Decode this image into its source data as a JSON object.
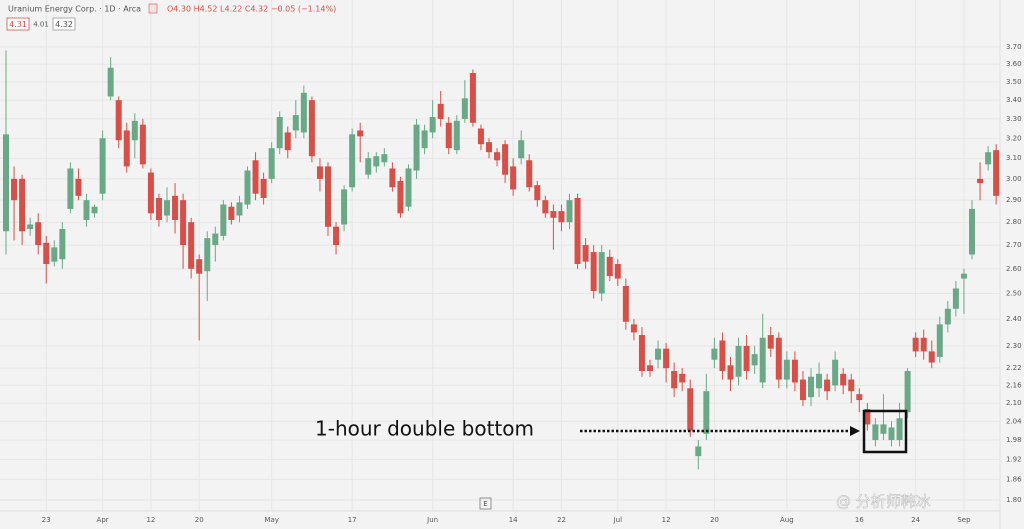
{
  "header": {
    "symbol": "Uranium Energy Corp. · 1D · Arca",
    "ohlc": "O4.30 H4.52 L4.22 C4.32 −0.05 (−1.14%)",
    "boxes": [
      "4.31",
      "4.01",
      "4.32"
    ]
  },
  "watermark": "@ 分析师韩冰",
  "scale_button": "E",
  "chart_data": {
    "type": "candlestick",
    "log_scale": true,
    "grid": true,
    "up_color": "#6aa888",
    "down_color": "#d45049",
    "annotation": "1-hour double bottom",
    "categories": [
      null,
      null,
      null,
      null,
      null,
      "23",
      null,
      null,
      null,
      null,
      null,
      null,
      "Apr",
      null,
      null,
      null,
      null,
      null,
      "12",
      null,
      null,
      null,
      null,
      null,
      "20",
      null,
      null,
      null,
      null,
      null,
      null,
      null,
      null,
      "May",
      null,
      null,
      null,
      null,
      null,
      null,
      null,
      null,
      null,
      "17",
      null,
      null,
      null,
      null,
      null,
      null,
      null,
      null,
      null,
      "Jun",
      null,
      null,
      null,
      null,
      null,
      null,
      null,
      null,
      null,
      "14",
      null,
      null,
      null,
      null,
      null,
      "22",
      null,
      null,
      null,
      null,
      null,
      null,
      "Jul",
      null,
      null,
      null,
      null,
      null,
      "12",
      null,
      null,
      null,
      null,
      null,
      "20",
      null,
      null,
      null,
      null,
      null,
      null,
      null,
      null,
      "Aug",
      null,
      null,
      null,
      null,
      null,
      null,
      null,
      null,
      "16",
      null,
      null,
      null,
      null,
      null,
      null,
      "24",
      null,
      null,
      null,
      null,
      null,
      "Sep",
      null,
      null,
      null,
      null
    ],
    "open": [
      2.76,
      3.0,
      3.0,
      2.77,
      2.8,
      2.71,
      2.63,
      2.64,
      2.86,
      3.0,
      2.81,
      2.84,
      2.93,
      3.42,
      3.4,
      3.24,
      3.19,
      3.27,
      3.03,
      2.91,
      2.83,
      2.92,
      2.9,
      2.8,
      2.64,
      2.59,
      2.7,
      2.74,
      2.87,
      2.83,
      2.88,
      3.09,
      3.0,
      3.0,
      3.15,
      3.23,
      3.24,
      3.23,
      3.4,
      3.06,
      3.06,
      2.78,
      2.79,
      2.96,
      3.24,
      3.02,
      3.06,
      3.08,
      3.05,
      2.99,
      2.87,
      3.04,
      3.15,
      3.23,
      3.38,
      3.28,
      3.14,
      3.3,
      3.55,
      3.25,
      3.18,
      3.13,
      3.17,
      3.06,
      3.1,
      3.09,
      2.97,
      2.9,
      2.85,
      2.85,
      2.8,
      2.91,
      2.7,
      2.67,
      2.5,
      2.65,
      2.62,
      2.53,
      2.38,
      2.34,
      2.23,
      2.25,
      2.29,
      2.21,
      2.2,
      2.15,
      1.93,
      2.0,
      2.25,
      2.32,
      2.23,
      2.19,
      2.3,
      2.23,
      2.17,
      2.34,
      2.33,
      2.18,
      2.25,
      2.18,
      2.12,
      2.15,
      2.18,
      2.16,
      2.2,
      2.18,
      2.13,
      2.08,
      1.98,
      2.0,
      1.98,
      1.98,
      2.07,
      2.33,
      2.33,
      2.28,
      2.26,
      2.38,
      2.44,
      2.56,
      2.66,
      3.0,
      3.07,
      3.14
    ],
    "high": [
      3.68,
      3.06,
      3.02,
      2.82,
      2.84,
      2.74,
      2.72,
      2.8,
      3.08,
      3.05,
      2.93,
      2.88,
      3.24,
      3.64,
      3.42,
      3.28,
      3.33,
      3.3,
      3.05,
      2.93,
      2.96,
      2.98,
      2.93,
      2.82,
      2.66,
      2.76,
      2.78,
      2.9,
      2.89,
      2.92,
      3.06,
      3.13,
      3.03,
      3.18,
      3.34,
      3.26,
      3.4,
      3.48,
      3.42,
      3.1,
      3.08,
      2.8,
      2.97,
      3.25,
      3.28,
      3.13,
      3.13,
      3.15,
      3.08,
      3.01,
      3.07,
      3.3,
      3.27,
      3.4,
      3.45,
      3.31,
      3.32,
      3.51,
      3.57,
      3.27,
      3.2,
      3.15,
      3.19,
      3.1,
      3.24,
      3.12,
      2.99,
      2.92,
      2.88,
      2.88,
      2.93,
      2.93,
      2.73,
      2.7,
      2.7,
      2.68,
      2.64,
      2.56,
      2.4,
      2.37,
      2.25,
      2.32,
      2.31,
      2.24,
      2.22,
      2.18,
      1.98,
      2.2,
      2.33,
      2.35,
      2.26,
      2.33,
      2.34,
      2.3,
      2.42,
      2.37,
      2.35,
      2.28,
      2.28,
      2.21,
      2.22,
      2.24,
      2.2,
      2.28,
      2.22,
      2.2,
      2.15,
      2.1,
      2.05,
      2.13,
      2.04,
      2.1,
      2.22,
      2.35,
      2.36,
      2.32,
      2.41,
      2.47,
      2.55,
      2.6,
      2.9,
      3.08,
      3.16,
      3.17
    ],
    "low": [
      2.66,
      2.72,
      2.7,
      2.74,
      2.66,
      2.54,
      2.61,
      2.6,
      2.84,
      2.9,
      2.78,
      2.82,
      2.9,
      3.4,
      3.15,
      3.03,
      3.1,
      3.05,
      2.81,
      2.78,
      2.8,
      2.75,
      2.6,
      2.56,
      2.32,
      2.47,
      2.63,
      2.72,
      2.79,
      2.8,
      2.86,
      2.9,
      2.88,
      2.98,
      3.12,
      3.1,
      3.2,
      3.2,
      3.08,
      2.94,
      2.74,
      2.66,
      2.76,
      2.94,
      3.08,
      3.0,
      3.03,
      3.06,
      2.94,
      2.82,
      2.85,
      3.0,
      3.12,
      3.2,
      3.26,
      3.12,
      3.12,
      3.28,
      3.26,
      3.14,
      3.1,
      3.06,
      2.98,
      2.92,
      3.07,
      2.94,
      2.87,
      2.82,
      2.68,
      2.76,
      2.77,
      2.6,
      2.6,
      2.48,
      2.47,
      2.55,
      2.53,
      2.36,
      2.32,
      2.19,
      2.19,
      2.22,
      2.17,
      2.12,
      2.14,
      1.99,
      1.89,
      1.98,
      2.22,
      2.18,
      2.14,
      2.16,
      2.18,
      2.2,
      2.15,
      2.26,
      2.15,
      2.15,
      2.14,
      2.09,
      2.09,
      2.12,
      2.11,
      2.14,
      2.13,
      2.1,
      2.07,
      2.01,
      1.96,
      1.98,
      1.96,
      1.96,
      2.05,
      2.26,
      2.25,
      2.22,
      2.24,
      2.35,
      2.41,
      2.42,
      2.64,
      2.9,
      3.04,
      2.88
    ],
    "close": [
      3.22,
      2.9,
      2.76,
      2.79,
      2.7,
      2.62,
      2.69,
      2.77,
      3.05,
      2.92,
      2.9,
      2.87,
      3.2,
      3.58,
      3.19,
      3.06,
      3.29,
      3.07,
      2.84,
      2.81,
      2.9,
      2.81,
      2.7,
      2.6,
      2.58,
      2.73,
      2.75,
      2.88,
      2.81,
      2.89,
      3.04,
      2.93,
      2.91,
      3.15,
      3.31,
      3.14,
      3.32,
      3.44,
      3.11,
      3.0,
      2.78,
      2.7,
      2.95,
      3.22,
      3.21,
      3.1,
      3.11,
      3.12,
      2.96,
      2.84,
      3.05,
      3.27,
      3.24,
      3.31,
      3.3,
      3.15,
      3.29,
      3.41,
      3.28,
      3.17,
      3.13,
      3.09,
      3.02,
      2.95,
      3.19,
      2.96,
      2.9,
      2.84,
      2.82,
      2.8,
      2.9,
      2.62,
      2.63,
      2.51,
      2.67,
      2.57,
      2.56,
      2.39,
      2.35,
      2.21,
      2.21,
      2.29,
      2.22,
      2.15,
      2.17,
      2.01,
      1.96,
      2.14,
      2.29,
      2.21,
      2.18,
      2.3,
      2.21,
      2.27,
      2.33,
      2.29,
      2.18,
      2.25,
      2.17,
      2.11,
      2.19,
      2.2,
      2.14,
      2.25,
      2.16,
      2.14,
      2.11,
      2.03,
      2.03,
      2.03,
      2.02,
      2.05,
      2.21,
      2.28,
      2.28,
      2.24,
      2.38,
      2.44,
      2.52,
      2.58,
      2.86,
      2.98,
      3.13,
      2.92
    ],
    "ylim": [
      1.8,
      3.7
    ],
    "yticks": [
      {
        "value": 1.8,
        "label": "1.80"
      },
      1.86,
      1.92,
      1.98,
      2.04,
      {
        "value": 2.1,
        "label": "2.10"
      },
      2.16,
      2.22,
      {
        "value": 2.3,
        "label": "2.30"
      },
      {
        "value": 2.4,
        "label": "2.40"
      },
      {
        "value": 2.5,
        "label": "2.50"
      },
      {
        "value": 2.6,
        "label": "2.60"
      },
      {
        "value": 2.7,
        "label": "2.70"
      },
      {
        "value": 2.8,
        "label": "2.80"
      },
      {
        "value": 2.9,
        "label": "2.90"
      },
      {
        "value": 3.0,
        "label": "3.00"
      },
      {
        "value": 3.1,
        "label": "3.10"
      },
      {
        "value": 3.2,
        "label": "3.20"
      },
      {
        "value": 3.3,
        "label": "3.30"
      },
      {
        "value": 3.4,
        "label": "3.40"
      },
      {
        "value": 3.5,
        "label": "3.50"
      },
      {
        "value": 3.6,
        "label": "3.60"
      },
      {
        "value": 3.7,
        "label": "3.70"
      }
    ]
  }
}
